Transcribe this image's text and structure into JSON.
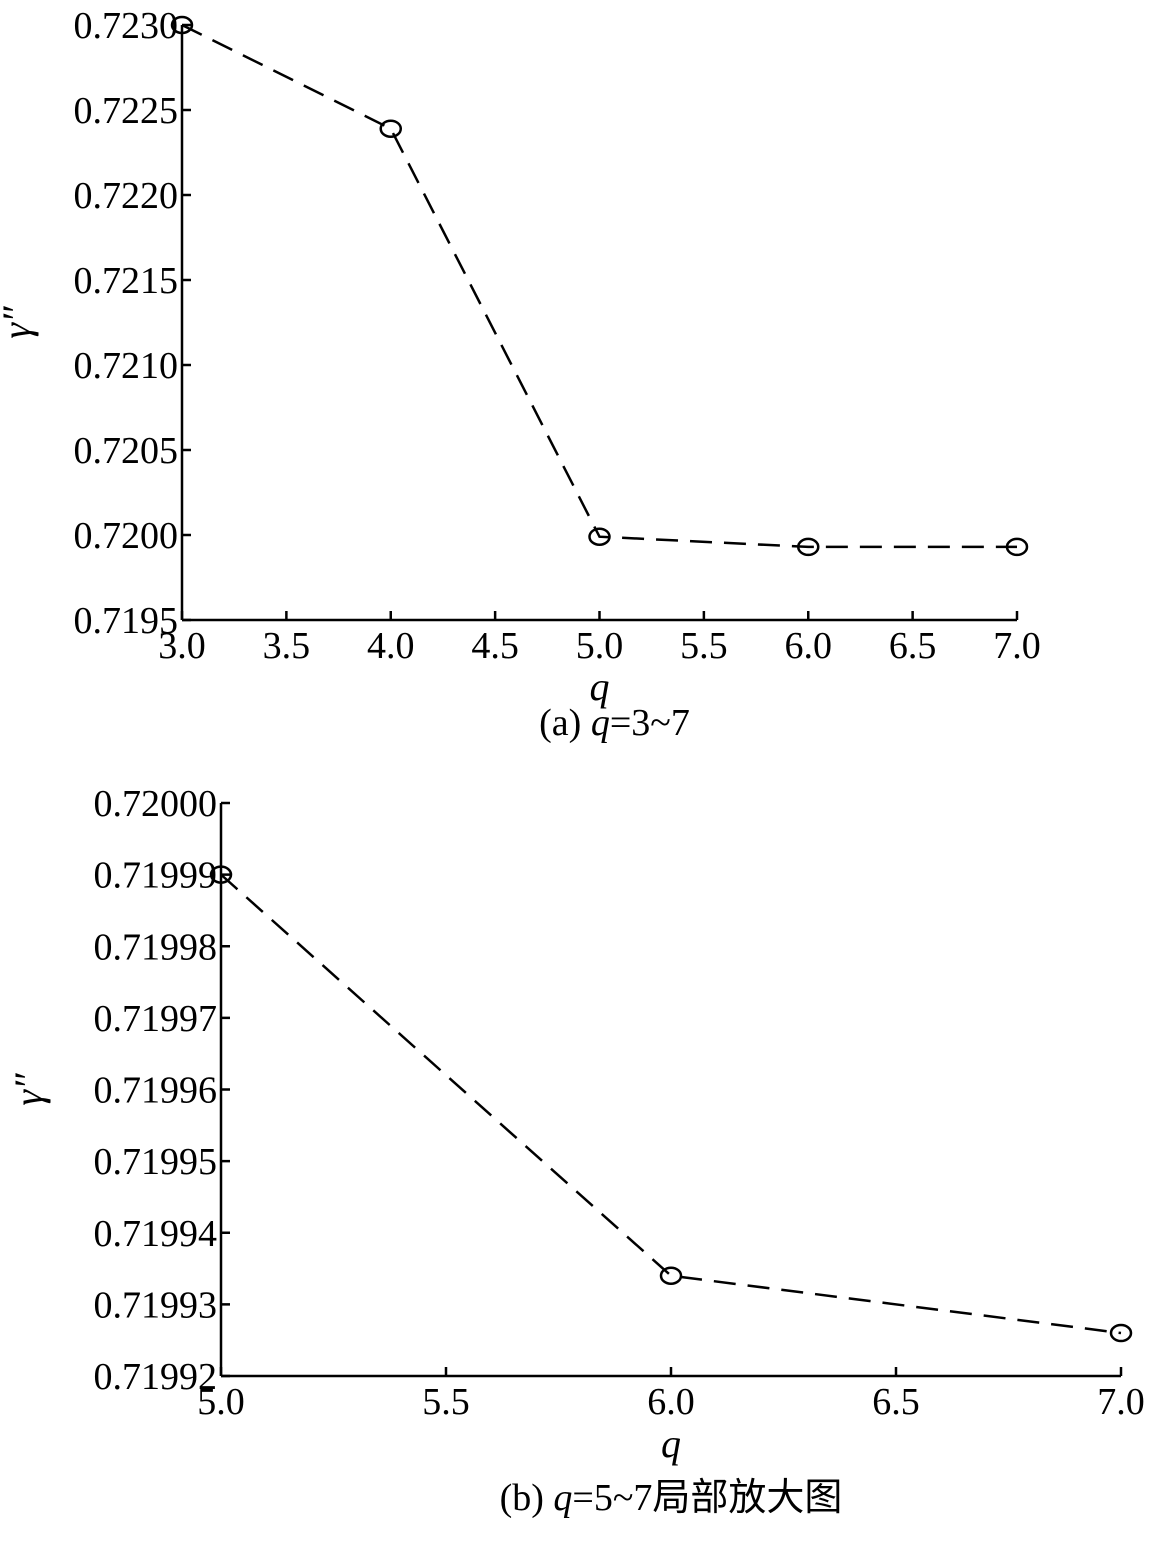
{
  "chart_data": [
    {
      "type": "line",
      "xlabel": "q",
      "ylabel": "γ″",
      "caption": {
        "prefix": "(a) ",
        "var": "q",
        "suffix": "=3~7"
      },
      "xlim": [
        3.0,
        7.0
      ],
      "ylim": [
        0.7195,
        0.723
      ],
      "xticks": [
        "3.0",
        "3.5",
        "4.0",
        "4.5",
        "5.0",
        "5.5",
        "6.0",
        "6.5",
        "7.0"
      ],
      "yticks": [
        "0.7195",
        "0.7200",
        "0.7205",
        "0.7210",
        "0.7215",
        "0.7220",
        "0.7225",
        "0.7230"
      ],
      "line_style": "dashed",
      "marker": "circle",
      "grid": false,
      "x": [
        3,
        4,
        5,
        6,
        7
      ],
      "y": [
        0.723,
        0.72239,
        0.71999,
        0.71993,
        0.71993
      ]
    },
    {
      "type": "line",
      "xlabel": "q",
      "ylabel": "γ″",
      "caption": {
        "prefix": "(b) ",
        "var": "q",
        "suffix": "=5~7局部放大图"
      },
      "xlim": [
        5.0,
        7.0
      ],
      "ylim": [
        0.71992,
        0.72
      ],
      "xticks": [
        "5.0",
        "5.5",
        "6.0",
        "6.5",
        "7.0"
      ],
      "yticks": [
        "0.71992",
        "0.71993",
        "0.71994",
        "0.71995",
        "0.71996",
        "0.71997",
        "0.71998",
        "0.71999",
        "0.72000"
      ],
      "line_style": "dashed",
      "marker": "circle",
      "grid": false,
      "x": [
        5,
        6,
        7
      ],
      "y": [
        0.71999,
        0.719934,
        0.719926
      ]
    }
  ]
}
